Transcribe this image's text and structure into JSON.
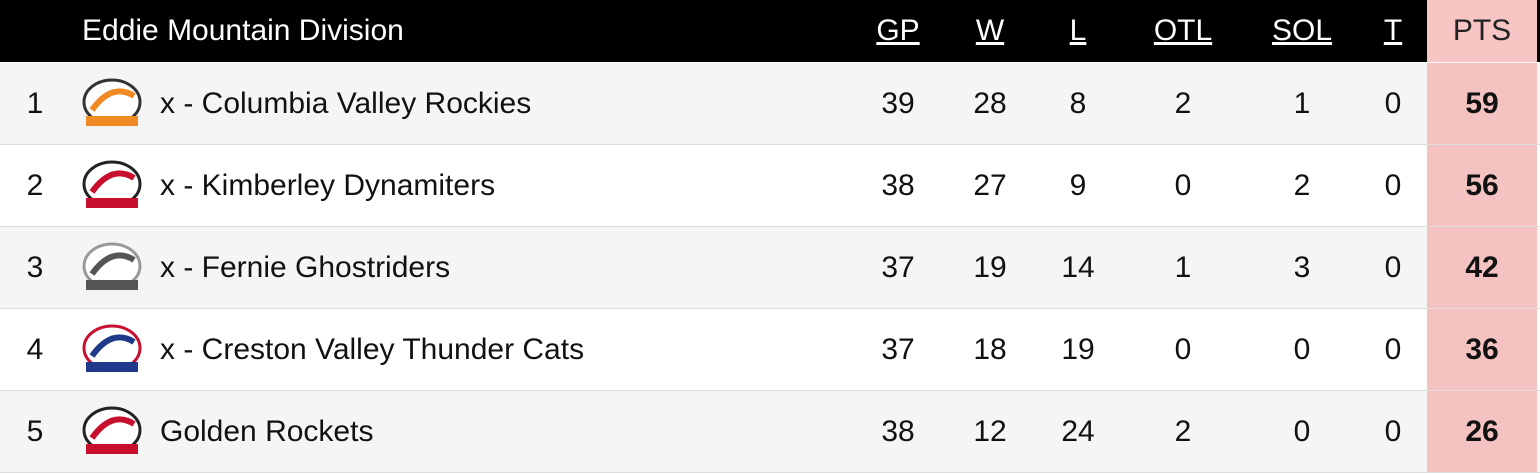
{
  "header": {
    "title": "Eddie Mountain Division",
    "columns": [
      "GP",
      "W",
      "L",
      "OTL",
      "SOL",
      "T",
      "PTS"
    ]
  },
  "table": {
    "rows": [
      [
        1,
        "x - Columbia Valley Rockies",
        39,
        28,
        8,
        2,
        1,
        0,
        59
      ],
      [
        2,
        "x - Kimberley Dynamiters",
        38,
        27,
        9,
        0,
        2,
        0,
        56
      ],
      [
        3,
        "x - Fernie Ghostriders",
        37,
        19,
        14,
        1,
        3,
        0,
        42
      ],
      [
        4,
        "x - Creston Valley Thunder Cats",
        37,
        18,
        19,
        0,
        0,
        0,
        36
      ],
      [
        5,
        "Golden Rockets",
        38,
        12,
        24,
        2,
        0,
        0,
        26
      ]
    ]
  }
}
